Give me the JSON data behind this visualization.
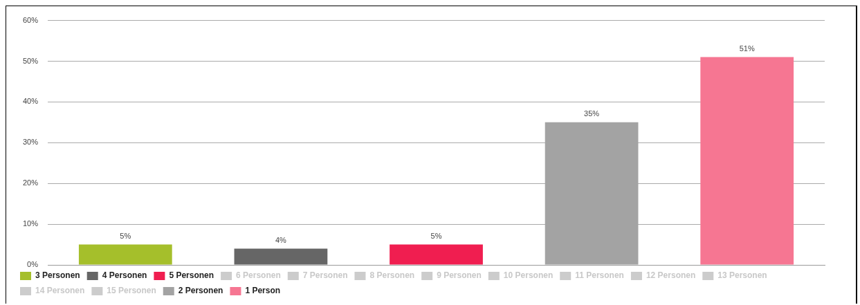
{
  "chart_data": {
    "type": "bar",
    "categories": [
      null
    ],
    "ylim": [
      0,
      60
    ],
    "yticks": [
      {
        "value": 0,
        "label": "0%"
      },
      {
        "value": 10,
        "label": "10%"
      },
      {
        "value": 20,
        "label": "20%"
      },
      {
        "value": 30,
        "label": "30%"
      },
      {
        "value": 40,
        "label": "40%"
      },
      {
        "value": 50,
        "label": "50%"
      },
      {
        "value": 60,
        "label": "60%"
      }
    ],
    "grid": "y",
    "legend": "bottom",
    "series": [
      {
        "name": "3 Personen",
        "color": "#a5bf2b",
        "values": [
          5
        ],
        "value_labels": [
          "5%"
        ]
      },
      {
        "name": "4 Personen",
        "color": "#666666",
        "values": [
          4
        ],
        "value_labels": [
          "4%"
        ]
      },
      {
        "name": "5 Personen",
        "color": "#f01e50",
        "values": [
          5
        ],
        "value_labels": [
          "5%"
        ]
      },
      {
        "name": "6 Personen",
        "color": "#cccccc",
        "values": [
          null
        ]
      },
      {
        "name": "7 Personen",
        "color": "#cccccc",
        "values": [
          null
        ]
      },
      {
        "name": "8 Personen",
        "color": "#cccccc",
        "values": [
          null
        ]
      },
      {
        "name": "9 Personen",
        "color": "#cccccc",
        "values": [
          null
        ]
      },
      {
        "name": "10 Personen",
        "color": "#cccccc",
        "values": [
          null
        ]
      },
      {
        "name": "11 Personen",
        "color": "#cccccc",
        "values": [
          null
        ]
      },
      {
        "name": "12 Personen",
        "color": "#cccccc",
        "values": [
          null
        ]
      },
      {
        "name": "13 Personen",
        "color": "#cccccc",
        "values": [
          null
        ]
      },
      {
        "name": "14 Personen",
        "color": "#cccccc",
        "values": [
          null
        ]
      },
      {
        "name": "15 Personen",
        "color": "#cccccc",
        "values": [
          null
        ]
      },
      {
        "name": "2 Personen",
        "color": "#a3a3a3",
        "values": [
          35
        ],
        "value_labels": [
          "35%"
        ]
      },
      {
        "name": "1 Person",
        "color": "#f67692",
        "values": [
          51
        ],
        "value_labels": [
          "51%"
        ]
      }
    ]
  }
}
